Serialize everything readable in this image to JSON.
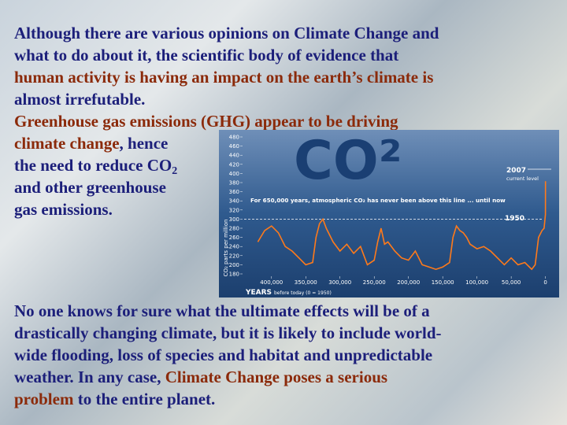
{
  "paragraphs": [
    {
      "lines": [
        [
          {
            "text": "Although there are various opinions on Climate Change and",
            "color": "#1c1f7a"
          }
        ],
        [
          {
            "text": "what to do about it, the scientific body of evidence that",
            "color": "#1c1f7a"
          }
        ],
        [
          {
            "text": "human activity is having an impact on the earth’s climate is",
            "color": "#8b2a0a"
          }
        ],
        [
          {
            "text": "almost irrefutable.",
            "color": "#1c1f7a"
          }
        ],
        [
          {
            "text": "Greenhouse gas emissions (GHG) appear to be driving",
            "color": "#8b2a0a"
          }
        ],
        [
          {
            "text": "climate change",
            "color": "#8b2a0a"
          },
          {
            "text": ", hence",
            "color": "#1c1f7a"
          }
        ],
        [
          {
            "text": "the need to reduce CO",
            "color": "#1c1f7a"
          },
          {
            "text": "2",
            "color": "#1c1f7a",
            "sub": true
          }
        ],
        [
          {
            "text": "and other greenhouse",
            "color": "#1c1f7a"
          }
        ],
        [
          {
            "text": "gas emissions.",
            "color": "#1c1f7a"
          }
        ]
      ]
    },
    {
      "lines": [
        [
          {
            "text": "No one knows for sure what the ultimate effects will be of a",
            "color": "#1c1f7a"
          }
        ],
        [
          {
            "text": "drastically changing climate, but it is likely to include world-",
            "color": "#1c1f7a"
          }
        ],
        [
          {
            "text": "wide flooding, loss of species and habitat and unpredictable",
            "color": "#1c1f7a"
          }
        ],
        [
          {
            "text": "weather. In any case, ",
            "color": "#1c1f7a"
          },
          {
            "text": "Climate Change poses a serious",
            "color": "#8b2a0a"
          }
        ],
        [
          {
            "text": "problem",
            "color": "#8b2a0a"
          },
          {
            "text": " to the entire planet.",
            "color": "#1c1f7a"
          }
        ]
      ]
    }
  ],
  "chart": {
    "type": "line",
    "title": "CO²",
    "y_label": "CO₂ parts per million",
    "x_label": "YEARS",
    "x_sublabel": "before today (0 = 1950)",
    "annotations": [
      "2007",
      "current level",
      "For 650,000 years, atmospheric CO₂ has never been above this line ... until now",
      "1950"
    ],
    "threshold": 300,
    "color": "#ff7a1a",
    "xlim": [
      440000,
      -20000
    ],
    "ylim": [
      180,
      480
    ],
    "yticks": [
      180,
      200,
      220,
      240,
      260,
      280,
      300,
      320,
      340,
      360,
      380,
      400,
      420,
      440,
      460,
      480
    ],
    "xticks": [
      {
        "value": 400000,
        "label": "400,000"
      },
      {
        "value": 350000,
        "label": "350,000"
      },
      {
        "value": 300000,
        "label": "300,000"
      },
      {
        "value": 250000,
        "label": "250,000"
      },
      {
        "value": 200000,
        "label": "200,000"
      },
      {
        "value": 150000,
        "label": "150,000"
      },
      {
        "value": 100000,
        "label": "100,000"
      },
      {
        "value": 50000,
        "label": "50,000"
      },
      0
    ],
    "x": [
      420000,
      410000,
      400000,
      390000,
      380000,
      370000,
      360000,
      350000,
      340000,
      335000,
      330000,
      325000,
      320000,
      310000,
      300000,
      290000,
      280000,
      270000,
      260000,
      250000,
      245000,
      240000,
      235000,
      230000,
      220000,
      210000,
      200000,
      190000,
      180000,
      170000,
      160000,
      150000,
      140000,
      135000,
      130000,
      125000,
      120000,
      115000,
      110000,
      100000,
      90000,
      80000,
      70000,
      60000,
      50000,
      40000,
      30000,
      20000,
      15000,
      10000,
      5000,
      2000,
      0,
      -57
    ],
    "values": [
      250,
      275,
      285,
      270,
      240,
      230,
      215,
      200,
      205,
      260,
      290,
      300,
      280,
      250,
      230,
      245,
      225,
      240,
      200,
      210,
      250,
      280,
      245,
      250,
      230,
      215,
      210,
      230,
      200,
      195,
      190,
      195,
      205,
      260,
      285,
      275,
      270,
      260,
      245,
      235,
      240,
      230,
      215,
      200,
      215,
      200,
      205,
      190,
      200,
      260,
      275,
      280,
      310,
      383
    ]
  }
}
